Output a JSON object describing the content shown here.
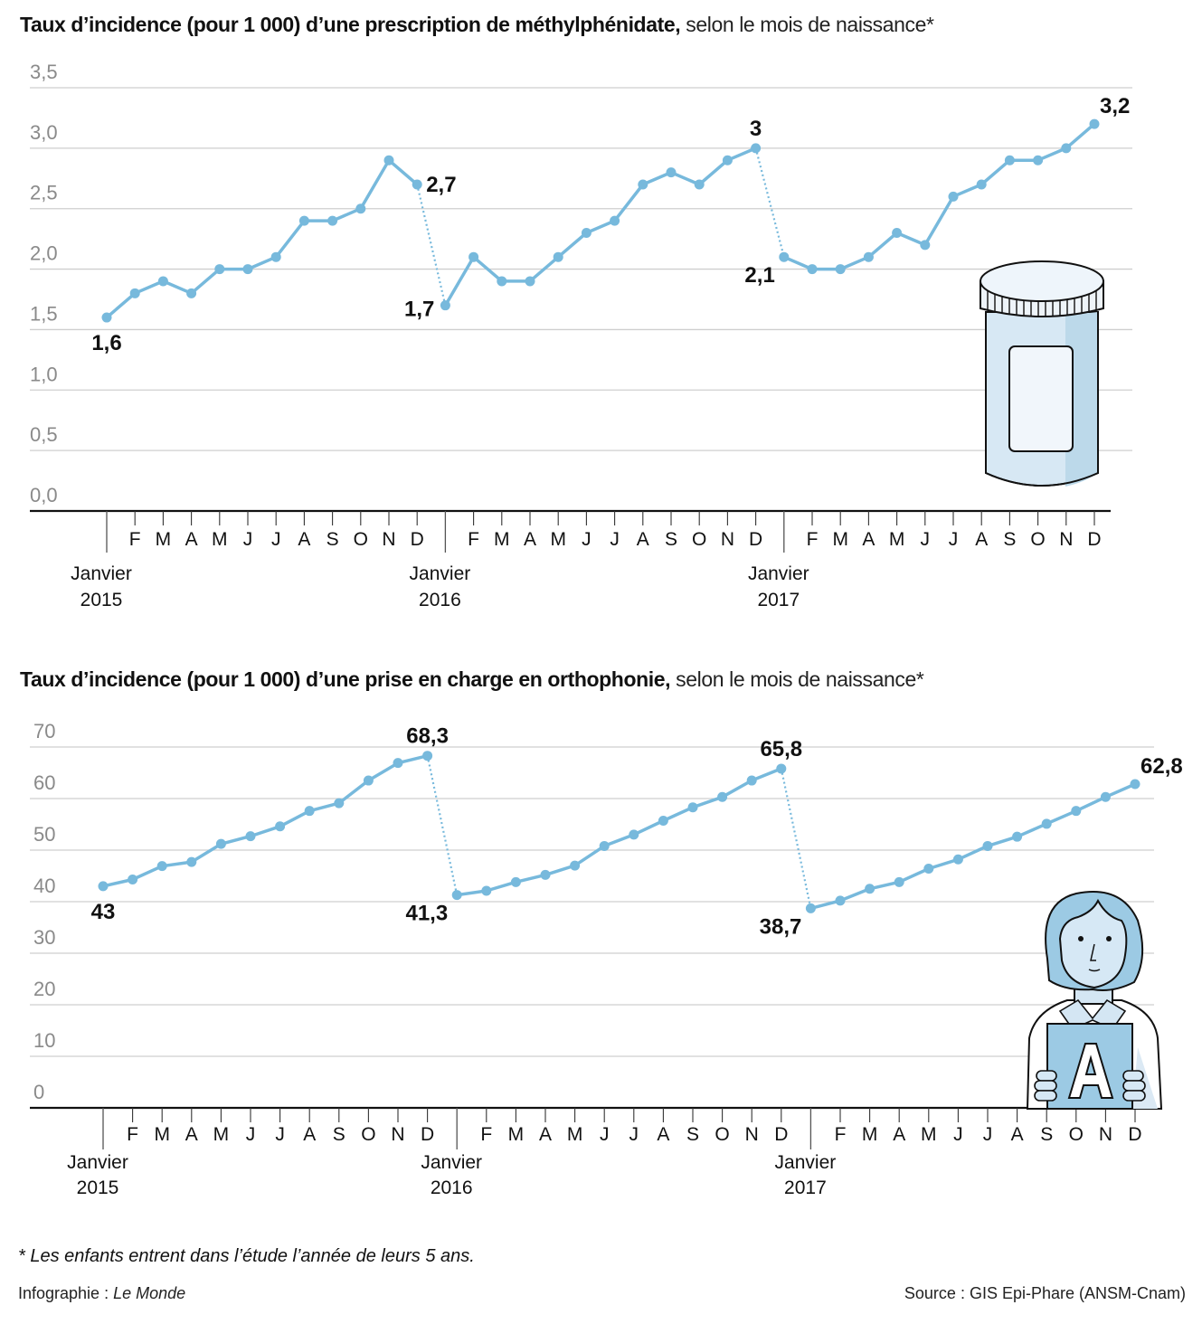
{
  "charts": [
    {
      "title_bold": "Taux d’incidence (pour 1 000) d’une prescription de méthylphénidate,",
      "title_light": " selon le mois de naissance*",
      "illustration": "pill-bottle"
    },
    {
      "title_bold": "Taux d’incidence (pour 1 000) d’une prise en charge en orthophonie,",
      "title_light": " selon le mois de naissance*",
      "illustration": "speech-therapist-holding-letter-A"
    }
  ],
  "chart_data": [
    {
      "type": "line",
      "title": "Taux d’incidence (pour 1 000) d’une prescription de méthylphénidate, selon le mois de naissance*",
      "xlabel": "",
      "ylabel": "",
      "ylim": [
        0,
        3.5
      ],
      "yticks": [
        0,
        0.5,
        1.0,
        1.5,
        2.0,
        2.5,
        3.0,
        3.5
      ],
      "ytick_labels": [
        "0,0",
        "0,5",
        "1,0",
        "1,5",
        "2,0",
        "2,5",
        "3,0",
        "3,5"
      ],
      "grid": true,
      "month_labels": [
        "F",
        "M",
        "A",
        "M",
        "J",
        "J",
        "A",
        "S",
        "O",
        "N",
        "D"
      ],
      "year_labels": [
        [
          "Janvier",
          "2015"
        ],
        [
          "Janvier",
          "2016"
        ],
        [
          "Janvier",
          "2017"
        ]
      ],
      "series": [
        {
          "name": "2015",
          "values": [
            1.6,
            1.8,
            1.9,
            1.8,
            2.0,
            2.0,
            2.1,
            2.4,
            2.4,
            2.5,
            2.9,
            2.7
          ]
        },
        {
          "name": "2016",
          "values": [
            1.7,
            2.1,
            1.9,
            1.9,
            2.1,
            2.3,
            2.4,
            2.7,
            2.8,
            2.7,
            2.9,
            3.0
          ]
        },
        {
          "name": "2017",
          "values": [
            2.1,
            2.0,
            2.0,
            2.1,
            2.3,
            2.2,
            2.6,
            2.7,
            2.9,
            2.9,
            3.0,
            3.2
          ]
        }
      ],
      "annotations": [
        {
          "series": 0,
          "index": 0,
          "text": "1,6",
          "pos": "below"
        },
        {
          "series": 0,
          "index": 11,
          "text": "2,7",
          "pos": "right"
        },
        {
          "series": 1,
          "index": 0,
          "text": "1,7",
          "pos": "left"
        },
        {
          "series": 1,
          "index": 11,
          "text": "3",
          "pos": "above"
        },
        {
          "series": 2,
          "index": 0,
          "text": "2,1",
          "pos": "left-below"
        },
        {
          "series": 2,
          "index": 11,
          "text": "3,2",
          "pos": "above-right"
        }
      ],
      "line_color": "#77b9dc"
    },
    {
      "type": "line",
      "title": "Taux d’incidence (pour 1 000) d’une prise en charge en orthophonie, selon le mois de naissance*",
      "xlabel": "",
      "ylabel": "",
      "ylim": [
        0,
        70
      ],
      "yticks": [
        0,
        10,
        20,
        30,
        40,
        50,
        60,
        70
      ],
      "ytick_labels": [
        "0",
        "10",
        "20",
        "30",
        "40",
        "50",
        "60",
        "70"
      ],
      "grid": true,
      "month_labels": [
        "F",
        "M",
        "A",
        "M",
        "J",
        "J",
        "A",
        "S",
        "O",
        "N",
        "D"
      ],
      "year_labels": [
        [
          "Janvier",
          "2015"
        ],
        [
          "Janvier",
          "2016"
        ],
        [
          "Janvier",
          "2017"
        ]
      ],
      "series": [
        {
          "name": "2015",
          "values": [
            43.0,
            44.3,
            46.9,
            47.7,
            51.2,
            52.7,
            54.6,
            57.6,
            59.1,
            63.5,
            66.9,
            68.3
          ]
        },
        {
          "name": "2016",
          "values": [
            41.3,
            42.1,
            43.8,
            45.2,
            47.0,
            50.8,
            53.0,
            55.7,
            58.3,
            60.3,
            63.5,
            65.8
          ]
        },
        {
          "name": "2017",
          "values": [
            38.7,
            40.2,
            42.5,
            43.8,
            46.4,
            48.2,
            50.8,
            52.6,
            55.1,
            57.6,
            60.3,
            62.8
          ]
        }
      ],
      "annotations": [
        {
          "series": 0,
          "index": 0,
          "text": "43",
          "pos": "below"
        },
        {
          "series": 0,
          "index": 11,
          "text": "68,3",
          "pos": "above"
        },
        {
          "series": 1,
          "index": 0,
          "text": "41,3",
          "pos": "left-below"
        },
        {
          "series": 1,
          "index": 11,
          "text": "65,8",
          "pos": "above"
        },
        {
          "series": 2,
          "index": 0,
          "text": "38,7",
          "pos": "left-below"
        },
        {
          "series": 2,
          "index": 11,
          "text": "62,8",
          "pos": "above-right"
        }
      ],
      "line_color": "#77b9dc"
    }
  ],
  "footer": {
    "note": "* Les enfants entrent dans l’étude l’année de leurs 5 ans.",
    "credit_prefix": "Infographie : ",
    "credit_name": "Le Monde",
    "source": "Source : GIS Epi-Phare (ANSM-Cnam)"
  }
}
